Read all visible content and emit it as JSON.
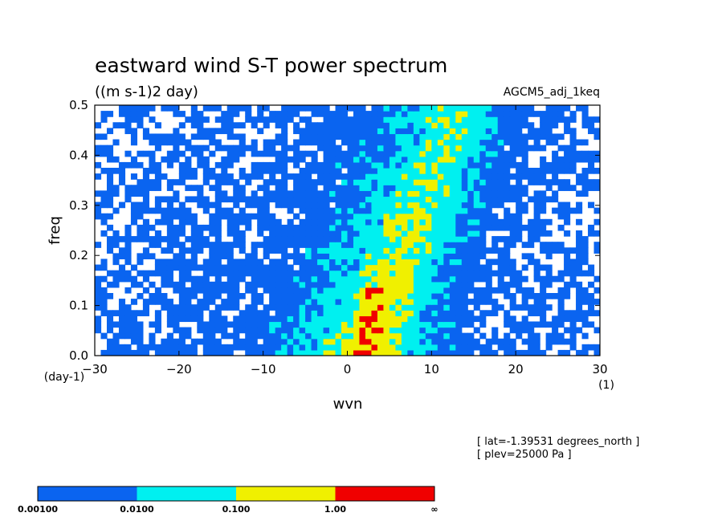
{
  "chart_data": {
    "type": "heatmap",
    "title": "eastward wind S-T power spectrum",
    "subtitle": "((m s-1)2 day)",
    "experiment": "AGCM5_adj_1keq",
    "xlabel": "wvn",
    "x_unit": "(1)",
    "ylabel": "freq",
    "y_unit": "(day-1)",
    "xlim": [
      -30,
      30
    ],
    "ylim": [
      0.0,
      0.5
    ],
    "x_ticks": [
      "-30",
      "-20",
      "-10",
      "0",
      "10",
      "20",
      "30"
    ],
    "y_ticks": [
      "0.0",
      "0.1",
      "0.2",
      "0.3",
      "0.4",
      "0.5"
    ],
    "annotations": [
      "[ lat=-1.39531 degrees_north ]",
      "[ plev=25000 Pa ]"
    ],
    "contour_levels": [
      0.001,
      0.01,
      0.1,
      1.0
    ],
    "colorbar": {
      "labels": [
        "0.00100",
        "0.0100",
        "0.100",
        "1.00",
        "∞"
      ],
      "colors": [
        "#0a64f0",
        "#00f0f0",
        "#f0f000",
        "#f00000"
      ]
    },
    "features": [
      {
        "label": "max",
        "wvn": 3,
        "freq": 0.13,
        "level": "> 1.00"
      },
      {
        "label": "max",
        "wvn": 2.5,
        "freq": 0.075,
        "level": "> 1.00"
      }
    ]
  }
}
